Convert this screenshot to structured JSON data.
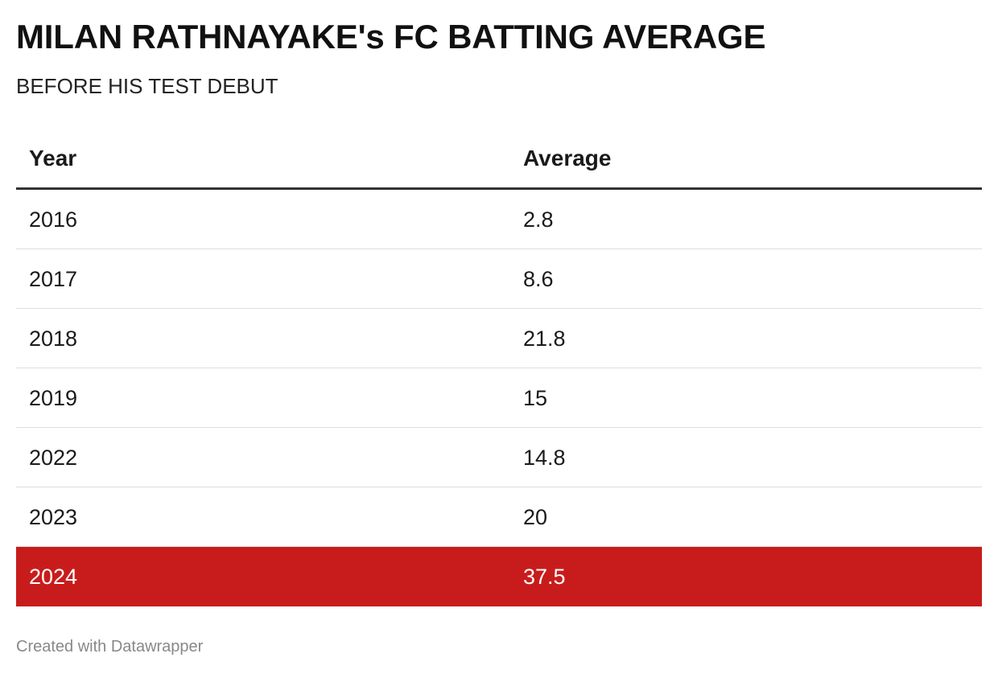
{
  "chart_data": {
    "type": "table",
    "title": "MILAN RATHNAYAKE's FC BATTING AVERAGE",
    "subtitle": "BEFORE HIS TEST DEBUT",
    "columns": [
      "Year",
      "Average"
    ],
    "rows": [
      {
        "year": "2016",
        "average": "2.8"
      },
      {
        "year": "2017",
        "average": "8.6"
      },
      {
        "year": "2018",
        "average": "21.8"
      },
      {
        "year": "2019",
        "average": "15"
      },
      {
        "year": "2022",
        "average": "14.8"
      },
      {
        "year": "2023",
        "average": "20"
      },
      {
        "year": "2024",
        "average": "37.5",
        "highlighted": true
      }
    ],
    "highlight_color": "#c81c1c"
  },
  "footer": {
    "credit": "Created with Datawrapper"
  }
}
